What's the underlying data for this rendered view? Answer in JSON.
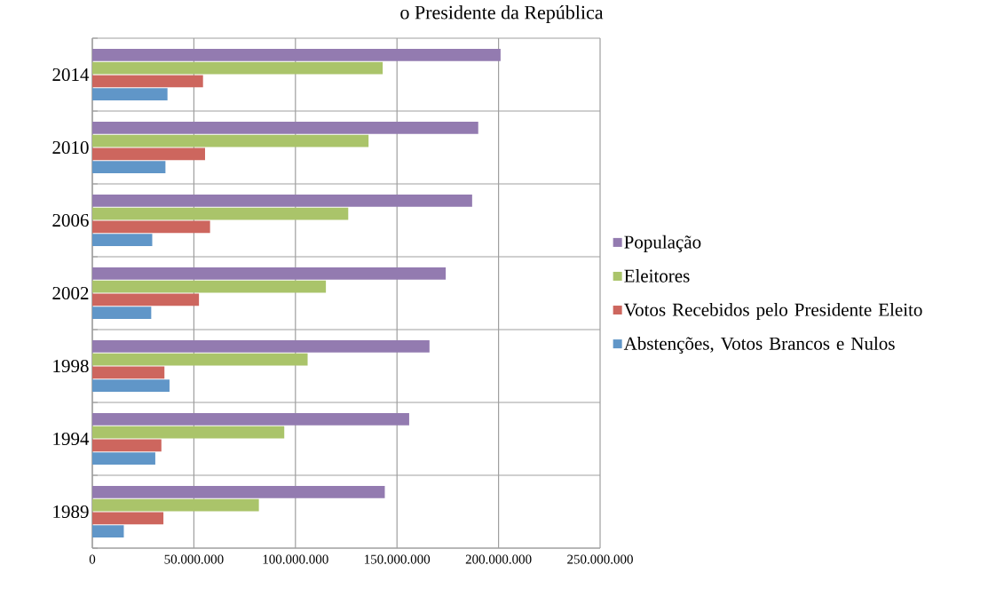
{
  "chart_data": {
    "type": "bar",
    "orientation": "horizontal",
    "title": "o Presidente da República",
    "categories": [
      "2014",
      "2010",
      "2006",
      "2002",
      "1998",
      "1994",
      "1989"
    ],
    "series": [
      {
        "name": "População",
        "color": "#937bb0",
        "values": [
          201000000,
          190000000,
          187000000,
          174000000,
          166000000,
          156000000,
          144000000
        ]
      },
      {
        "name": "Eleitores",
        "color": "#aac46a",
        "values": [
          143000000,
          136000000,
          126000000,
          115000000,
          106000000,
          94500000,
          82000000
        ]
      },
      {
        "name": "Votos Recebidos pelo Presidente Eleito",
        "color": "#cd665e",
        "values": [
          54500000,
          55500000,
          58000000,
          52500000,
          35500000,
          34000000,
          35000000
        ]
      },
      {
        "name": "Abstenções, Votos Brancos e Nulos",
        "color": "#6096c8",
        "values": [
          37000000,
          36000000,
          29500000,
          29000000,
          38000000,
          31000000,
          15500000
        ]
      }
    ],
    "xlim": [
      0,
      250000000
    ],
    "xticks": [
      0,
      {
        "value": 50000000,
        "label": "50.000.000"
      },
      {
        "value": 100000000,
        "label": "100.000.000"
      },
      {
        "value": 150000000,
        "label": "150.000.000"
      },
      {
        "value": 200000000,
        "label": "200.000.000"
      },
      {
        "value": 250000000,
        "label": "250.000.000"
      }
    ],
    "grid": true,
    "legend": "right"
  }
}
